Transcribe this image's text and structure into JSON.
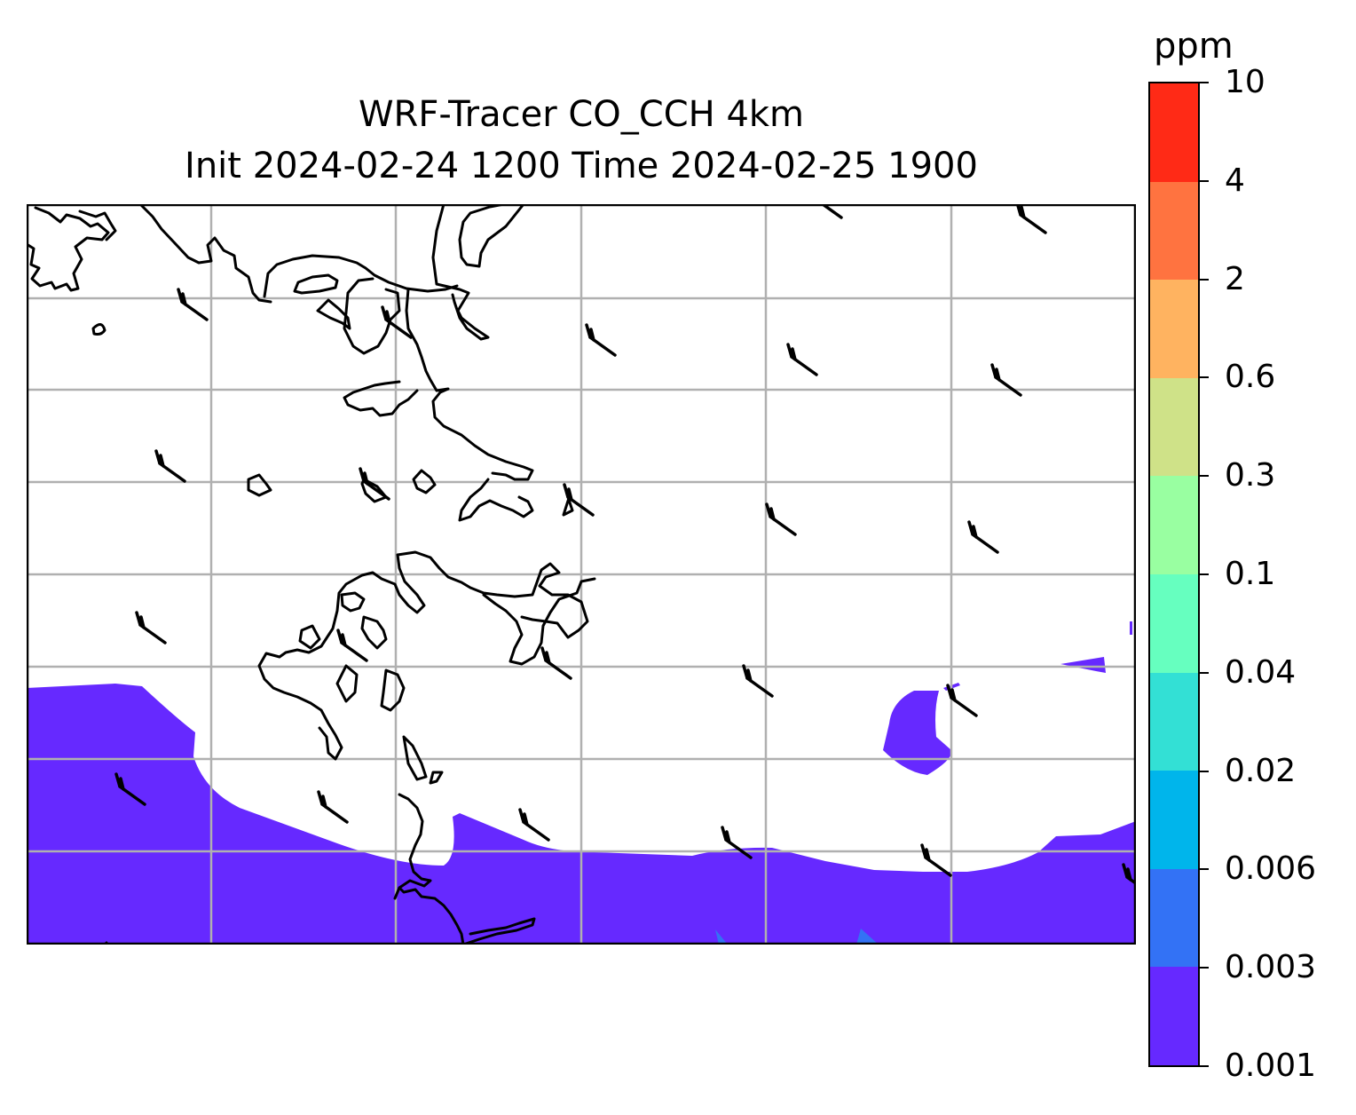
{
  "title": {
    "line1": "WRF-Tracer CO_CCH 4km",
    "line2": "Init 2024-02-24 1200 Time 2024-02-25 1900"
  },
  "colorbar": {
    "unit": "ppm",
    "levels": [
      "0.001",
      "0.003",
      "0.006",
      "0.02",
      "0.04",
      "0.1",
      "0.3",
      "0.6",
      "2",
      "4",
      "10"
    ],
    "colors": [
      "#6629ff",
      "#3372f5",
      "#00b5eb",
      "#33e0d5",
      "#66ffbf",
      "#99ffa1",
      "#cfe288",
      "#ffb360",
      "#ff7340",
      "#ff2a16"
    ]
  },
  "map": {
    "fill_color_lowest": "#6629ff",
    "fill_color_second": "#3372f5",
    "coastline_color": "#000000",
    "gridline_color": "#b0b0b0",
    "wind_barb_color": "#000000",
    "gridlines": true
  }
}
